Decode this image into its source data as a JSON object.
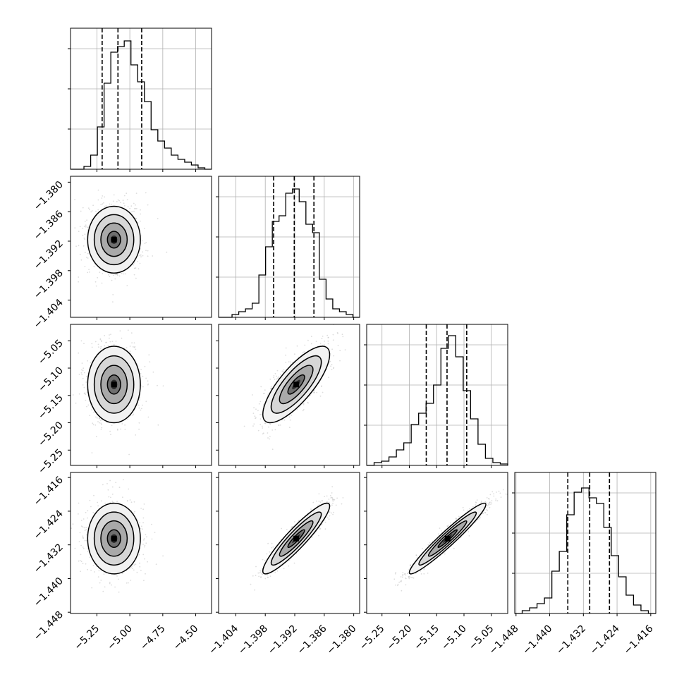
{
  "chart_data": {
    "type": "corner",
    "parameters": [
      {
        "range": [
          -5.45,
          -4.38
        ],
        "ticks": [
          -5.25,
          -5.0,
          -4.75,
          -4.5
        ],
        "tick_labels": [
          "−5.25",
          "−5.00",
          "−4.75",
          "−4.50"
        ],
        "quantiles": [
          -5.21,
          -5.09,
          -4.91
        ],
        "hist": [
          0.0,
          0.0,
          0.02,
          0.1,
          0.3,
          0.61,
          0.83,
          0.87,
          0.91,
          0.74,
          0.62,
          0.48,
          0.28,
          0.2,
          0.15,
          0.1,
          0.07,
          0.05,
          0.03,
          0.01,
          0.0
        ]
      },
      {
        "range": [
          -1.4075,
          -1.3788
        ],
        "ticks": [
          -1.404,
          -1.398,
          -1.392,
          -1.386,
          -1.38
        ],
        "tick_labels": [
          "−1.404",
          "−1.398",
          "−1.392",
          "−1.386",
          "−1.380"
        ],
        "quantiles": [
          -1.3963,
          -1.3921,
          -1.3881
        ],
        "hist": [
          0.0,
          0.0,
          0.02,
          0.04,
          0.06,
          0.1,
          0.3,
          0.5,
          0.68,
          0.72,
          0.88,
          0.91,
          0.82,
          0.66,
          0.6,
          0.27,
          0.13,
          0.06,
          0.04,
          0.02,
          0.0
        ]
      },
      {
        "range": [
          -5.278,
          -5.02
        ],
        "ticks": [
          -5.25,
          -5.2,
          -5.15,
          -5.1,
          -5.05
        ],
        "tick_labels": [
          "−5.25",
          "−5.20",
          "−5.15",
          "−5.10",
          "−5.05"
        ],
        "quantiles": [
          -5.169,
          -5.131,
          -5.095
        ],
        "hist": [
          0.0,
          0.02,
          0.03,
          0.06,
          0.11,
          0.16,
          0.29,
          0.37,
          0.44,
          0.57,
          0.83,
          0.92,
          0.77,
          0.53,
          0.33,
          0.15,
          0.05,
          0.02,
          0.01
        ]
      },
      {
        "range": [
          -1.4483,
          -1.4148
        ],
        "ticks": [
          -1.448,
          -1.44,
          -1.432,
          -1.424,
          -1.416
        ],
        "tick_labels": [
          "−1.448",
          "−1.440",
          "−1.432",
          "−1.424",
          "−1.416"
        ],
        "quantiles": [
          -1.4357,
          -1.4305,
          -1.4258
        ],
        "hist": [
          0.0,
          0.02,
          0.04,
          0.07,
          0.11,
          0.3,
          0.44,
          0.7,
          0.86,
          0.89,
          0.82,
          0.78,
          0.61,
          0.41,
          0.26,
          0.13,
          0.06,
          0.02,
          0.0
        ]
      }
    ],
    "pairs": [
      {
        "x": 0,
        "y": 1,
        "mean": [
          -5.12,
          -1.3917
        ],
        "sd": [
          0.1,
          0.0034
        ],
        "rho": 0.0
      },
      {
        "x": 0,
        "y": 2,
        "mean": [
          -5.12,
          -5.13
        ],
        "sd": [
          0.1,
          0.035
        ],
        "rho": 0.0
      },
      {
        "x": 1,
        "y": 2,
        "mean": [
          -1.3917,
          -5.13
        ],
        "sd": [
          0.0034,
          0.035
        ],
        "rho": 0.78
      },
      {
        "x": 0,
        "y": 3,
        "mean": [
          -5.12,
          -1.4305
        ],
        "sd": [
          0.1,
          0.0042
        ],
        "rho": 0.0
      },
      {
        "x": 1,
        "y": 3,
        "mean": [
          -1.3917,
          -1.4305
        ],
        "sd": [
          0.0034,
          0.0042
        ],
        "rho": 0.92
      },
      {
        "x": 2,
        "y": 3,
        "mean": [
          -5.13,
          -1.4305
        ],
        "sd": [
          0.035,
          0.0042
        ],
        "rho": 0.96
      }
    ],
    "contour_levels_sigma": [
      0.5,
      1.0,
      1.5,
      2.0
    ],
    "grid": true,
    "colors": {
      "line": "#000000",
      "points": "#b4b4b4",
      "grid": "#b0b0b0",
      "density": "#000000"
    }
  }
}
